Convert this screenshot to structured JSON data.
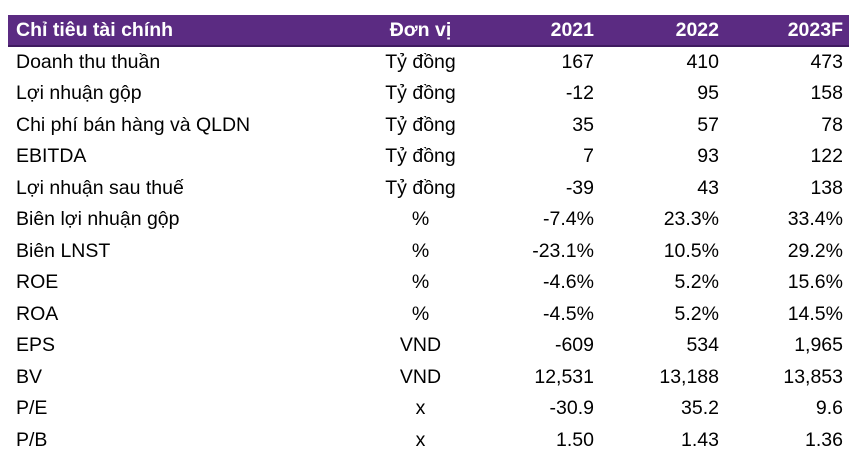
{
  "table": {
    "headers": [
      "Chỉ tiêu tài chính",
      "Đơn vị",
      "2021",
      "2022",
      "2023F"
    ],
    "rows": [
      [
        "Doanh thu thuần",
        "Tỷ đồng",
        "167",
        "410",
        "473"
      ],
      [
        "Lợi nhuận gộp",
        "Tỷ đồng",
        "-12",
        "95",
        "158"
      ],
      [
        "Chi phí bán hàng và QLDN",
        "Tỷ đồng",
        "35",
        "57",
        "78"
      ],
      [
        "EBITDA",
        "Tỷ đồng",
        "7",
        "93",
        "122"
      ],
      [
        "Lợi nhuận sau thuế",
        "Tỷ đồng",
        "-39",
        "43",
        "138"
      ],
      [
        "Biên lợi nhuận gộp",
        "%",
        "-7.4%",
        "23.3%",
        "33.4%"
      ],
      [
        "Biên LNST",
        "%",
        "-23.1%",
        "10.5%",
        "29.2%"
      ],
      [
        "ROE",
        "%",
        "-4.6%",
        "5.2%",
        "15.6%"
      ],
      [
        "ROA",
        "%",
        "-4.5%",
        "5.2%",
        "14.5%"
      ],
      [
        "EPS",
        "VND",
        "-609",
        "534",
        "1,965"
      ],
      [
        "BV",
        "VND",
        "12,531",
        "13,188",
        "13,853"
      ],
      [
        "P/E",
        "x",
        "-30.9",
        "35.2",
        "9.6"
      ],
      [
        "P/B",
        "x",
        "1.50",
        "1.43",
        "1.36"
      ]
    ]
  },
  "colors": {
    "header_bg": "#5b2b82",
    "header_text": "#ffffff"
  }
}
